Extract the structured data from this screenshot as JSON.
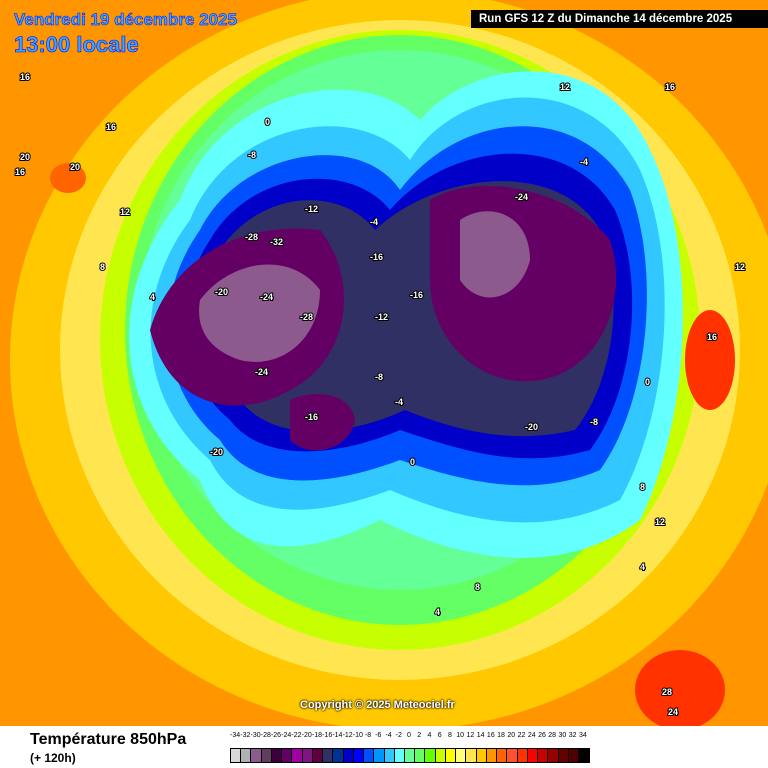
{
  "header": {
    "date": "Vendredi 19 décembre 2025",
    "time": "13:00 locale",
    "run": "Run GFS 12 Z du Dimanche 14 décembre 2025"
  },
  "copyright": "Copyright © 2025 Meteociel.fr",
  "footer": {
    "title": "Température 850hPa",
    "subtitle": "(+ 120h)"
  },
  "legend": {
    "unit_values": [
      "-34",
      "-32",
      "-30",
      "-28",
      "-26",
      "-24",
      "-22",
      "-20",
      "-18",
      "-16",
      "-14",
      "-12",
      "-10",
      "-8",
      "-6",
      "-4",
      "-2",
      "0",
      "2",
      "4",
      "6",
      "8",
      "10",
      "12",
      "14",
      "16",
      "18",
      "20",
      "22",
      "24",
      "26",
      "28",
      "30",
      "32",
      "34"
    ],
    "colors": [
      "#d8d8d8",
      "#b0b0b0",
      "#8c5a8c",
      "#603c60",
      "#3c003c",
      "#640064",
      "#a000a0",
      "#801480",
      "#600040",
      "#303064",
      "#003296",
      "#0000c8",
      "#0000ff",
      "#0050ff",
      "#0096ff",
      "#32c8ff",
      "#64ffff",
      "#64ff96",
      "#64ff64",
      "#64ff00",
      "#c8ff00",
      "#ffff00",
      "#ffff80",
      "#ffe650",
      "#ffc800",
      "#ff9600",
      "#ff6400",
      "#ff5032",
      "#ff3200",
      "#ff0000",
      "#c80000",
      "#960000",
      "#640000",
      "#500000",
      "#000000"
    ]
  },
  "map": {
    "labels": [
      "16",
      "16",
      "16",
      "20",
      "12",
      "8",
      "4",
      "0",
      "-4",
      "-8",
      "-12",
      "-16",
      "-20",
      "-24",
      "-28",
      "-32",
      "-28",
      "-24",
      "-20",
      "-16",
      "-12",
      "-8",
      "-4",
      "0",
      "4",
      "8",
      "12",
      "16",
      "20",
      "24",
      "28",
      "12",
      "8",
      "4",
      "0",
      "-4",
      "-8",
      "-16",
      "-20",
      "-24",
      "12",
      "16"
    ]
  }
}
